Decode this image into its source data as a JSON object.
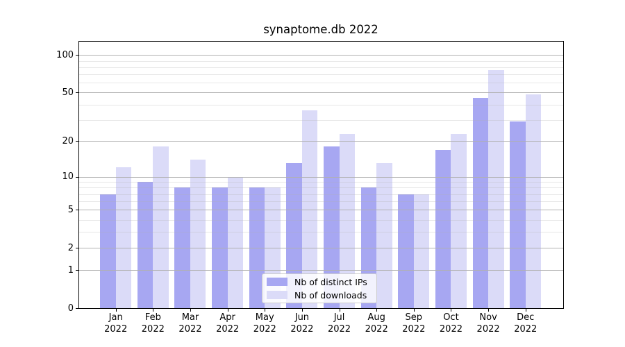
{
  "chart_data": {
    "type": "bar",
    "title": "synaptome.db 2022",
    "categories": [
      "Jan",
      "Feb",
      "Mar",
      "Apr",
      "May",
      "Jun",
      "Jul",
      "Aug",
      "Sep",
      "Oct",
      "Nov",
      "Dec"
    ],
    "category_sublabel": "2022",
    "series": [
      {
        "name": "Nb of distinct IPs",
        "color": "#a7a7f2",
        "values": [
          7,
          9,
          8,
          8,
          8,
          13,
          18,
          8,
          7,
          17,
          45,
          29
        ]
      },
      {
        "name": "Nb of downloads",
        "color": "#dbdbf8",
        "values": [
          12,
          18,
          14,
          10,
          8,
          36,
          23,
          13,
          7,
          23,
          76,
          48
        ]
      }
    ],
    "xlabel": "",
    "ylabel": "",
    "y_axis": {
      "scale": "log1p",
      "ticks": [
        0,
        1,
        2,
        5,
        10,
        20,
        50,
        100
      ],
      "minor_gridlines": [
        3,
        4,
        6,
        7,
        8,
        9,
        30,
        40,
        60,
        70,
        80,
        90
      ],
      "range": [
        0,
        128
      ],
      "grid": true
    },
    "legend": {
      "position": "lower center",
      "items": [
        "Nb of distinct IPs",
        "Nb of downloads"
      ]
    }
  }
}
